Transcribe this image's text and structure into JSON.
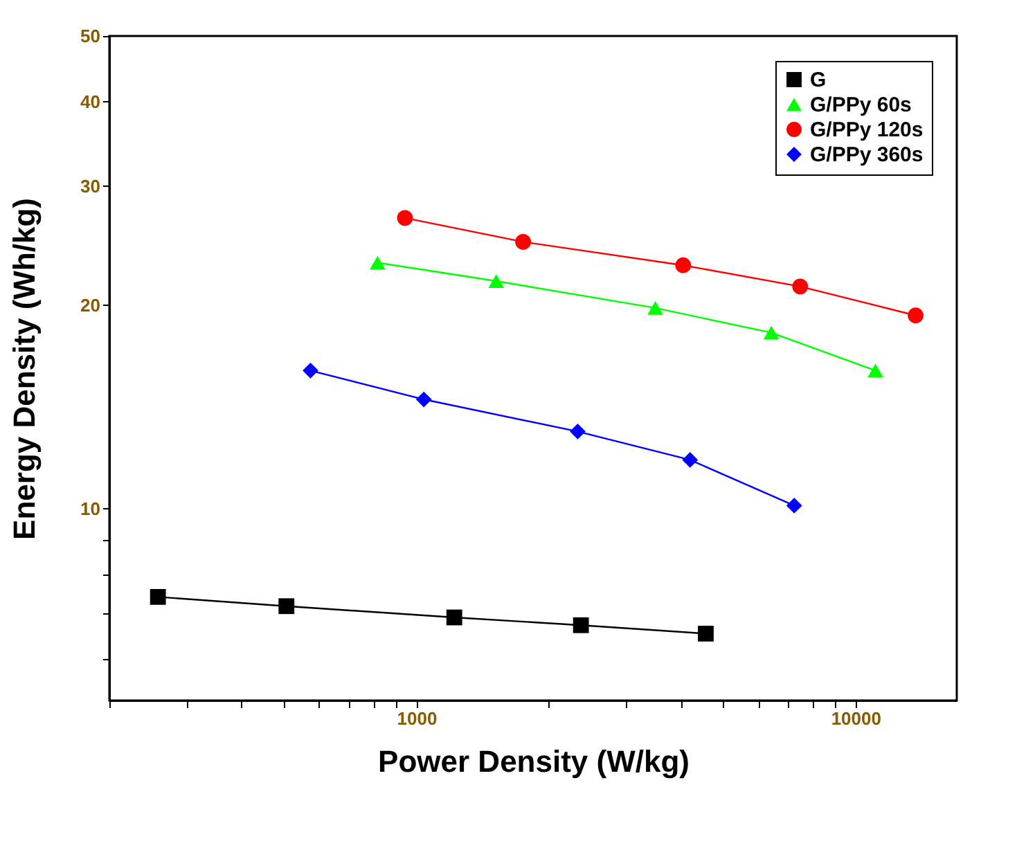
{
  "chart_data": {
    "type": "line",
    "xlabel": "Power Density (W/kg)",
    "ylabel": "Energy Density (Wh/kg)",
    "log": "xy",
    "xlim": [
      200,
      17000
    ],
    "ylim": [
      5.2,
      50
    ],
    "xticks": [
      {
        "value": 200,
        "label": null
      },
      {
        "value": 300,
        "label": null
      },
      {
        "value": 400,
        "label": null
      },
      {
        "value": 500,
        "label": null
      },
      {
        "value": 600,
        "label": null
      },
      {
        "value": 700,
        "label": null
      },
      {
        "value": 800,
        "label": null
      },
      {
        "value": 900,
        "label": null
      },
      1000,
      {
        "value": 2000,
        "label": null
      },
      {
        "value": 3000,
        "label": null
      },
      {
        "value": 4000,
        "label": null
      },
      {
        "value": 5000,
        "label": null
      },
      {
        "value": 6000,
        "label": null
      },
      {
        "value": 7000,
        "label": null
      },
      {
        "value": 8000,
        "label": null
      },
      {
        "value": 9000,
        "label": null
      },
      10000
    ],
    "yticks": [
      {
        "value": 6,
        "label": null
      },
      {
        "value": 7,
        "label": null
      },
      {
        "value": 8,
        "label": null
      },
      {
        "value": 9,
        "label": null
      },
      10,
      20,
      30,
      40,
      50
    ],
    "grid": false,
    "legend": "top right",
    "line_style": "solid",
    "series": [
      {
        "name": "G",
        "color": "#000000",
        "marker": "square",
        "x": [
          258,
          506,
          1220,
          2370,
          4560
        ],
        "values": [
          7.4,
          7.17,
          6.9,
          6.72,
          6.53
        ]
      },
      {
        "name": "G/PPy 60s",
        "color": "#00ff00",
        "marker": "triangle",
        "x": [
          816,
          1520,
          3500,
          6430,
          11100
        ],
        "values": [
          23.1,
          21.7,
          19.8,
          18.2,
          16.0
        ]
      },
      {
        "name": "G/PPy 120s",
        "color": "#ff0000",
        "marker": "circle",
        "x": [
          942,
          1750,
          4050,
          7480,
          13700
        ],
        "values": [
          26.9,
          24.8,
          22.9,
          21.3,
          19.3
        ]
      },
      {
        "name": "G/PPy 360s",
        "color": "#0000ff",
        "marker": "diamond",
        "x": [
          574,
          1040,
          2330,
          4200,
          7250
        ],
        "values": [
          16.0,
          14.5,
          13.0,
          11.8,
          10.1
        ]
      }
    ]
  }
}
